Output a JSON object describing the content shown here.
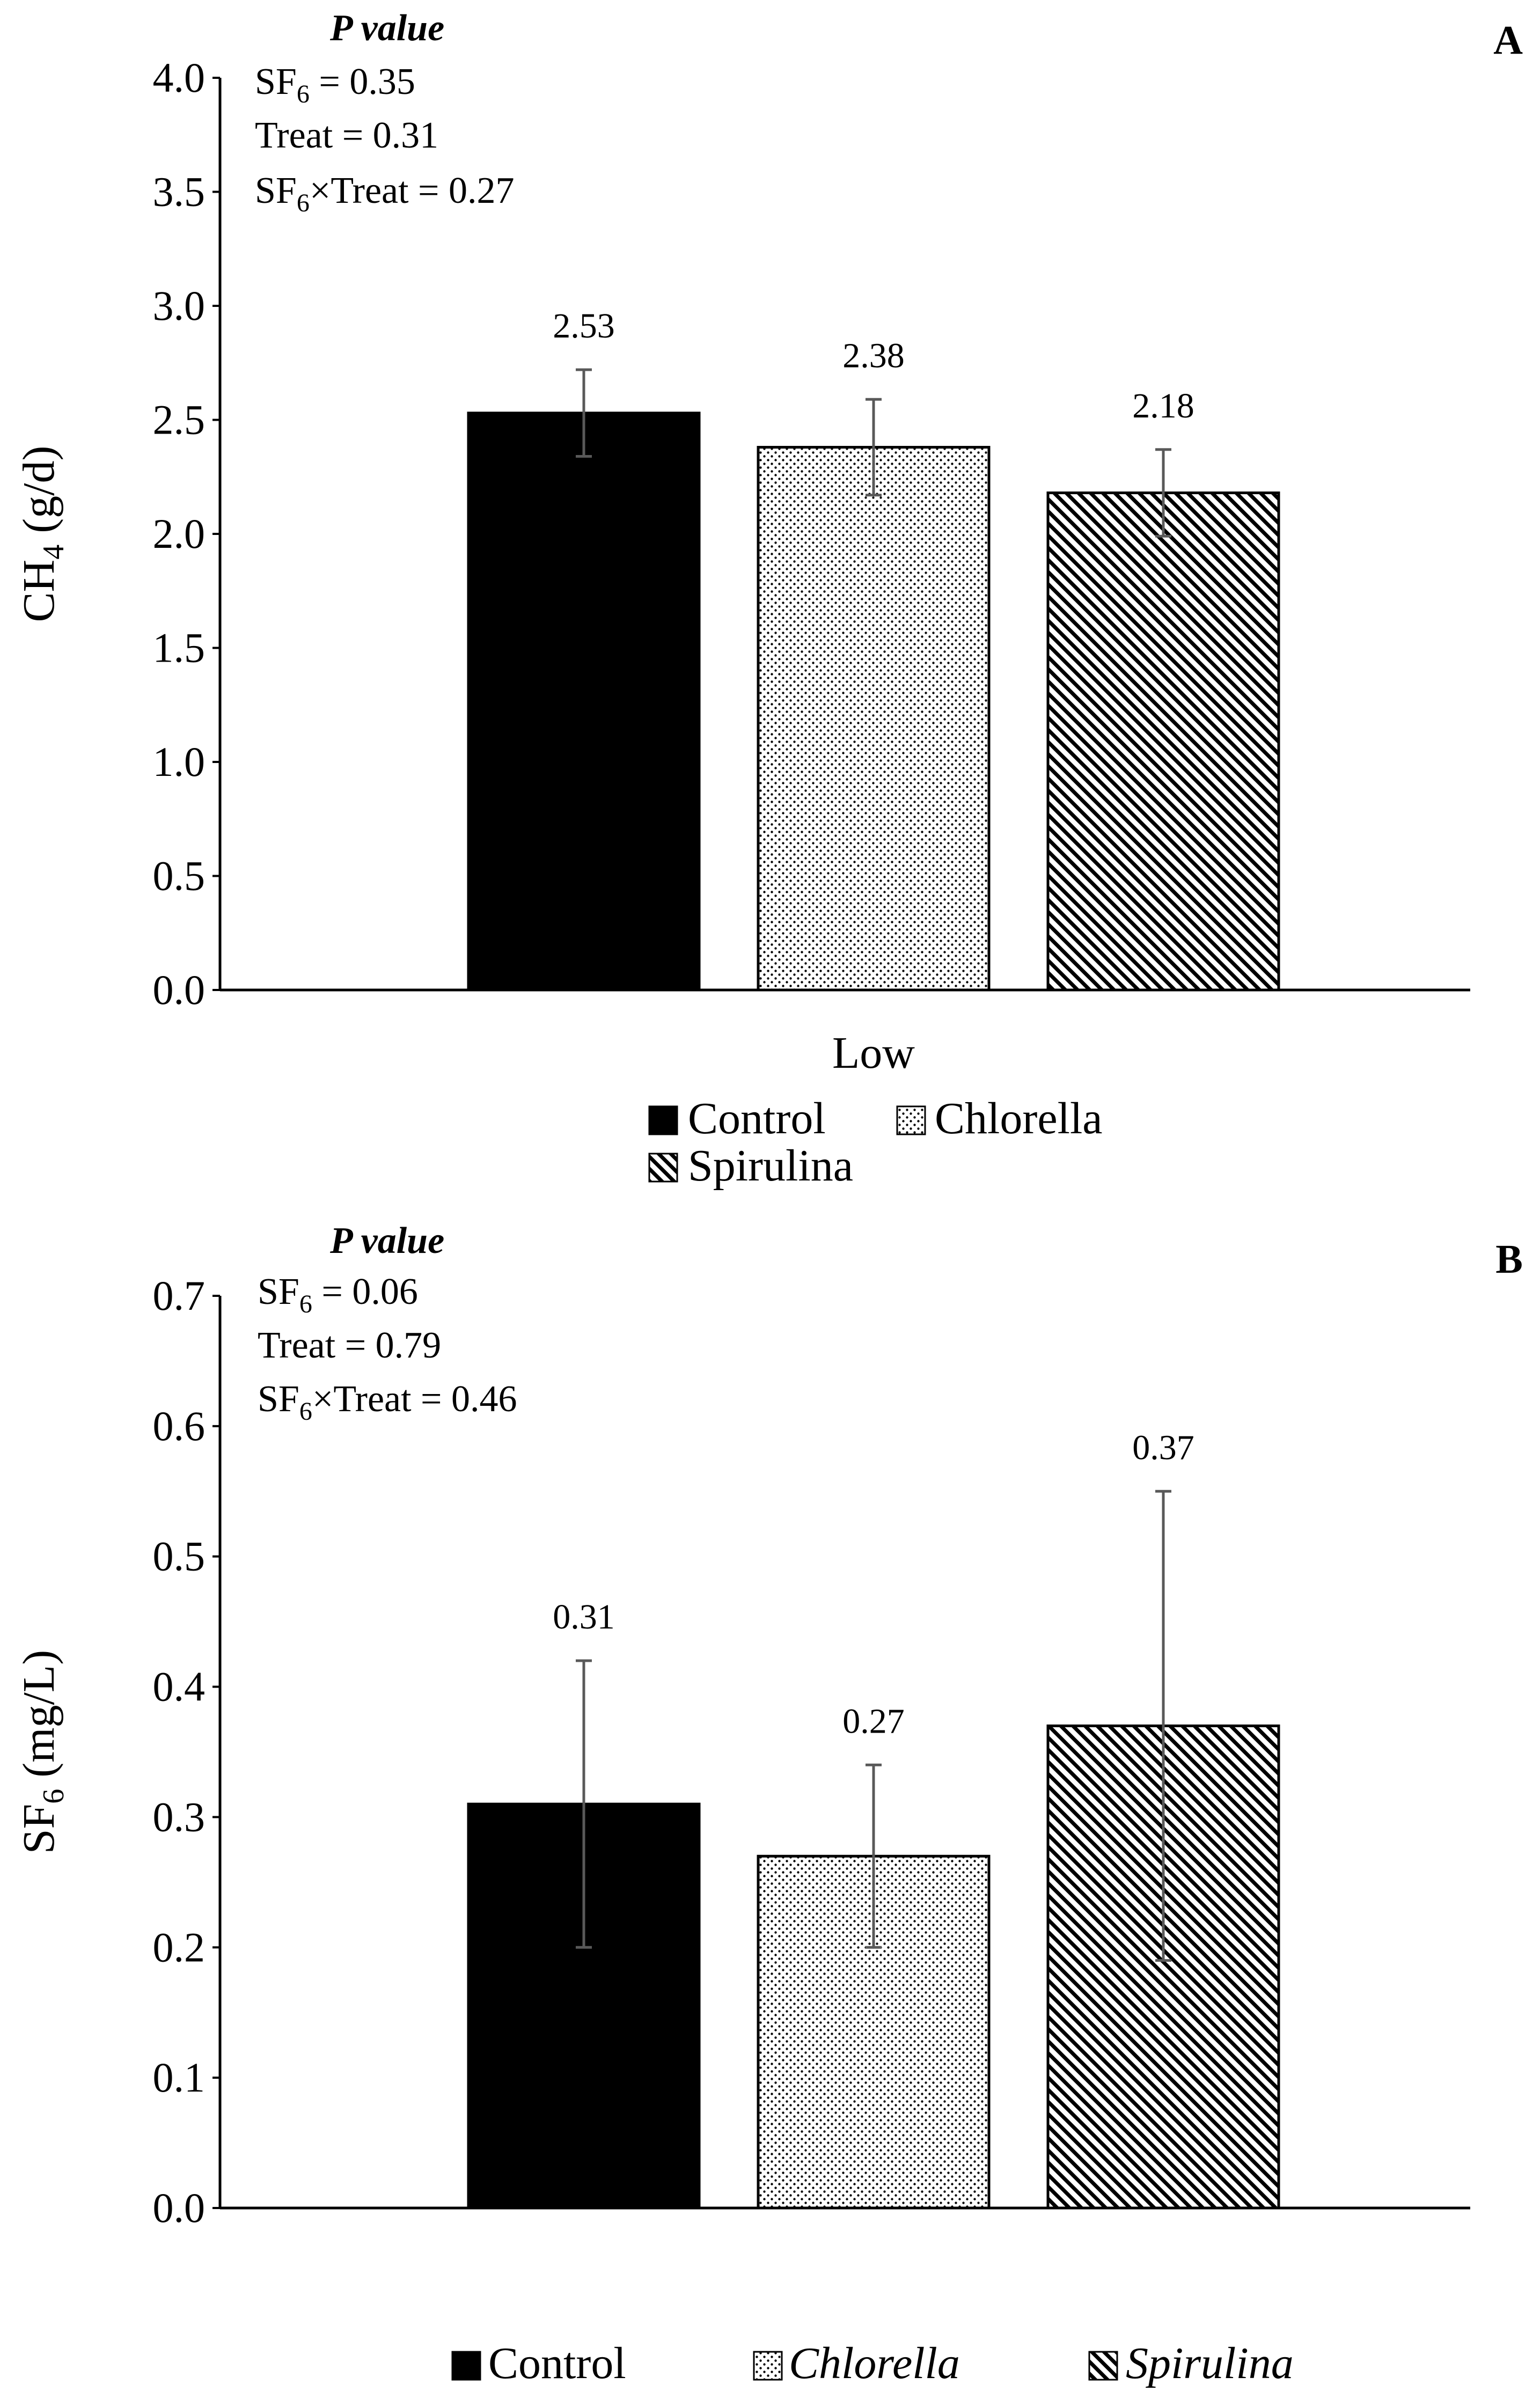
{
  "chart_data": [
    {
      "type": "bar",
      "panel_label": "A",
      "categories": [
        "Low"
      ],
      "series": [
        {
          "name": "Control",
          "values": [
            2.53
          ],
          "error": [
            0.19
          ],
          "pattern": "solid"
        },
        {
          "name": "Chlorella",
          "values": [
            2.38
          ],
          "error": [
            0.21
          ],
          "pattern": "dots"
        },
        {
          "name": "Spirulina",
          "values": [
            2.18
          ],
          "error": [
            0.19
          ],
          "pattern": "diagonal"
        }
      ],
      "data_labels": [
        "2.53",
        "2.38",
        "2.18"
      ],
      "xlabel": "Low",
      "ylabel": {
        "main": "CH",
        "sub": "4",
        "rest": " (g/d)"
      },
      "ylim": [
        0,
        4.0
      ],
      "yticks": [
        "0.0",
        "0.5",
        "1.0",
        "1.5",
        "2.0",
        "2.5",
        "3.0",
        "3.5",
        "4.0"
      ],
      "grid": false,
      "legend_placement": "bottom",
      "p_value": {
        "title": "P value",
        "lines": [
          {
            "pre": "SF",
            "sub": "6",
            "post": " = 0.35"
          },
          {
            "pre": "Treat = 0.31",
            "sub": "",
            "post": ""
          },
          {
            "pre": "SF",
            "sub": "6",
            "post": "×Treat = 0.27"
          }
        ]
      }
    },
    {
      "type": "bar",
      "panel_label": "B",
      "categories": [
        ""
      ],
      "series": [
        {
          "name": "Control",
          "values": [
            0.31
          ],
          "error": [
            0.11
          ],
          "pattern": "solid"
        },
        {
          "name": "Chlorella",
          "values": [
            0.27
          ],
          "error": [
            0.07
          ],
          "pattern": "dots"
        },
        {
          "name": "Spirulina",
          "values": [
            0.37
          ],
          "error": [
            0.18
          ],
          "pattern": "diagonal"
        }
      ],
      "data_labels": [
        "0.31",
        "0.27",
        "0.37"
      ],
      "xlabel": "",
      "ylabel": {
        "main": "SF",
        "sub": "6",
        "rest": " (mg/L)"
      },
      "ylim": [
        0,
        0.7
      ],
      "yticks": [
        "0.0",
        "0.1",
        "0.2",
        "0.3",
        "0.4",
        "0.5",
        "0.6",
        "0.7"
      ],
      "grid": false,
      "legend_placement": "bottom",
      "p_value": {
        "title": "P value",
        "lines": [
          {
            "pre": "SF",
            "sub": "6",
            "post": " = 0.06"
          },
          {
            "pre": "Treat = 0.79",
            "sub": "",
            "post": ""
          },
          {
            "pre": "SF",
            "sub": "6",
            "post": "×Treat = 0.46"
          }
        ]
      }
    }
  ],
  "legend_a": {
    "control": "Control",
    "chlorella": "Chlorella",
    "spirulina": "Spirulina"
  },
  "legend_b": {
    "control": "Control",
    "chlorella": "Chlorella",
    "spirulina": "Spirulina"
  },
  "colors": {
    "bar_fill": "#000000",
    "pattern_fill": "#ffffff",
    "error_bar": "#595959",
    "axis": "#000000"
  }
}
